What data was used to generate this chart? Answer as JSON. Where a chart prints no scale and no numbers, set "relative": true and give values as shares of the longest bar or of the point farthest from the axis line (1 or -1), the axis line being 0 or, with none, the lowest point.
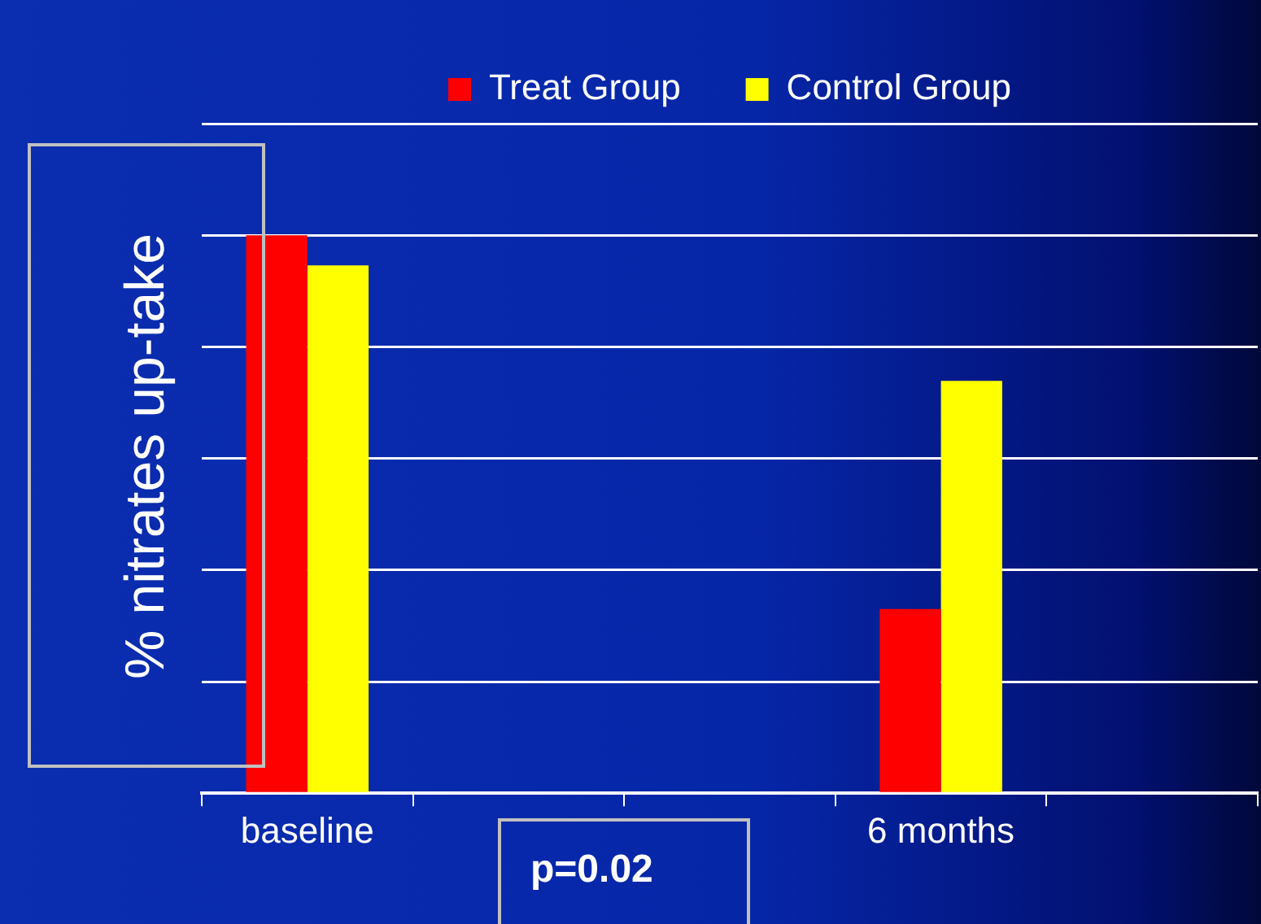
{
  "chart_data": {
    "type": "bar",
    "relative": true,
    "ylabel": "% nitrates up-take",
    "annotations": [
      "p=0.02"
    ],
    "categories": [
      "baseline",
      null,
      null,
      "6 months",
      null
    ],
    "series": [
      {
        "name": "Treat Group",
        "color": "#ff0000",
        "values": [
          1,
          null,
          null,
          0.33,
          null
        ]
      },
      {
        "name": "Control Group",
        "color": "#ffff00",
        "values": [
          0.946,
          null,
          null,
          0.739,
          null
        ]
      }
    ],
    "grid": "y",
    "legend": "top"
  }
}
